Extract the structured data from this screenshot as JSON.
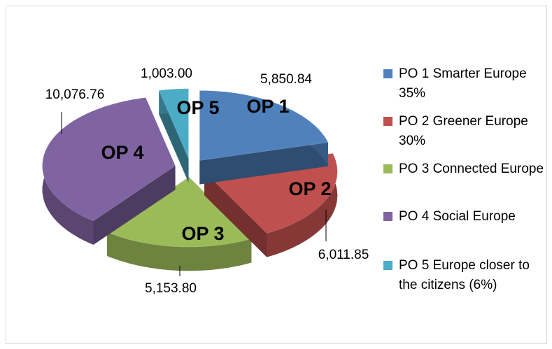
{
  "chart_data": {
    "type": "pie3d",
    "categories": [
      "PO 1 Smarter Europe 35%",
      "PO 2 Greener Europe 30%",
      "PO 3 Connected Europe",
      "PO 4 Social Europe",
      "PO 5 Europe closer to the citizens (6%)"
    ],
    "slice_labels": [
      "OP 1",
      "OP 2",
      "OP 3",
      "OP 4",
      "OP 5"
    ],
    "values": [
      5850.84,
      6011.85,
      5153.8,
      10076.76,
      1003.0
    ],
    "value_labels": [
      "5,850.84",
      "6,011.85",
      "5,153.80",
      "10,076.76",
      "1,003.00"
    ],
    "colors": [
      "#4f81bd",
      "#c0504d",
      "#9bbb59",
      "#8064a2",
      "#4bacc6"
    ],
    "legend": "right"
  }
}
